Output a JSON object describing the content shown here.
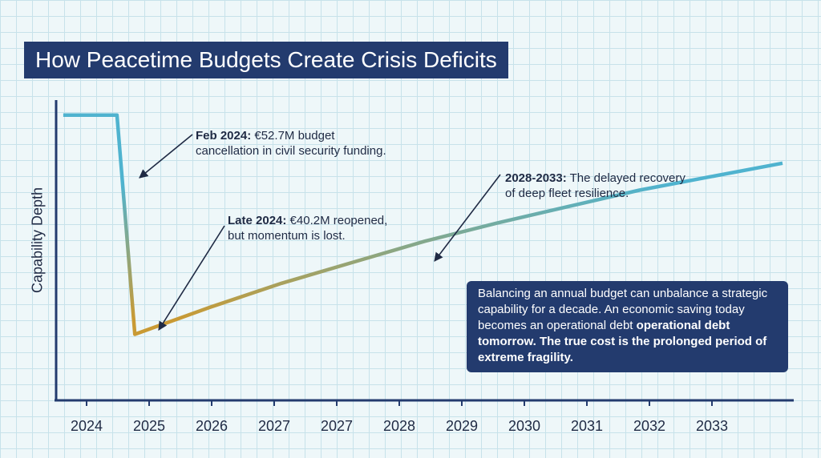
{
  "chart_data": {
    "type": "line",
    "title": "How Peacetime Budgets Create Crisis Deficits",
    "ylabel": "Capability Depth",
    "xlabel": "",
    "x_tick_labels": [
      "2024",
      "2025",
      "2026",
      "2027",
      "2027",
      "2028",
      "2029",
      "2030",
      "2031",
      "2032",
      "2033"
    ],
    "series": [
      {
        "color_start": "#4fb3cf",
        "color_end": "#c99a34",
        "points": [
          {
            "x": 2023.95,
            "y": 0.95
          },
          {
            "x": 2024.7,
            "y": 0.95
          },
          {
            "x": 2024.95,
            "y": 0.22
          },
          {
            "x": 2026.0,
            "y": 0.31
          },
          {
            "x": 2027.0,
            "y": 0.39
          },
          {
            "x": 2028.0,
            "y": 0.46
          },
          {
            "x": 2029.0,
            "y": 0.53
          },
          {
            "x": 2030.0,
            "y": 0.59
          },
          {
            "x": 2031.0,
            "y": 0.645
          },
          {
            "x": 2032.0,
            "y": 0.7
          },
          {
            "x": 2033.0,
            "y": 0.745
          },
          {
            "x": 2034.0,
            "y": 0.79
          }
        ]
      }
    ],
    "xlim": [
      2023.85,
      2034.0
    ],
    "ylim": [
      0,
      1
    ],
    "grid": true,
    "legend": "none",
    "annotations": [
      {
        "bold": "Feb 2024:",
        "text": " €52.7M budget",
        "text2": "cancellation in civil security funding."
      },
      {
        "bold": "Late 2024:",
        "text": " €40.2M reopened,",
        "text2": "but momentum is lost."
      },
      {
        "bold": "2028-2033:",
        "text": " The delayed recovery",
        "text2": "of deep fleet resilience."
      }
    ],
    "callout": {
      "normal": "Balancing an annual budget can unbalance a strategic capability for a decade. An economic saving today becomes an operational debt",
      "strong": "operational debt tomorrow. The true cost is the prolonged period of extreme fragility."
    },
    "colors": {
      "title_bg": "#233b6e",
      "axis": "#233b6e",
      "arrow": "#1f2a44"
    }
  }
}
